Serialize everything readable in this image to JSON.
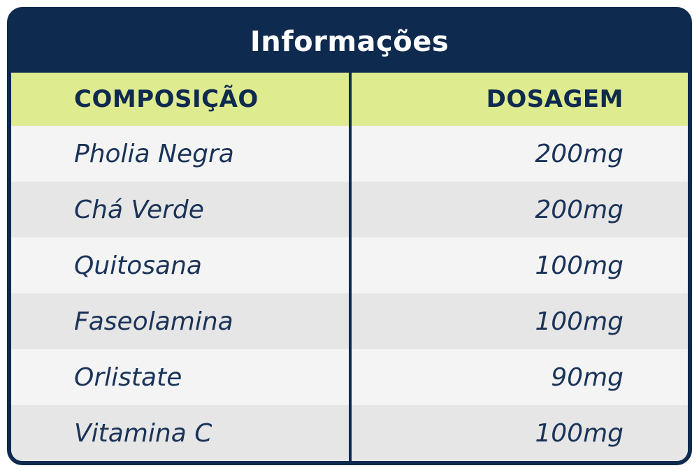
{
  "title": "Informações",
  "headers": {
    "composition": "COMPOSIÇÃO",
    "dosage": "DOSAGEM"
  },
  "rows": [
    {
      "composition": "Pholia Negra",
      "dosage": "200mg"
    },
    {
      "composition": "Chá Verde",
      "dosage": "200mg"
    },
    {
      "composition": "Quitosana",
      "dosage": "100mg"
    },
    {
      "composition": "Faseolamina",
      "dosage": "100mg"
    },
    {
      "composition": "Orlistate",
      "dosage": "90mg"
    },
    {
      "composition": "Vitamina C",
      "dosage": "100mg"
    }
  ],
  "colors": {
    "navy": "#0f2a4f",
    "header_green": "#dfeb8f",
    "row_light": "#f4f4f4",
    "row_dark": "#e6e6e6"
  }
}
